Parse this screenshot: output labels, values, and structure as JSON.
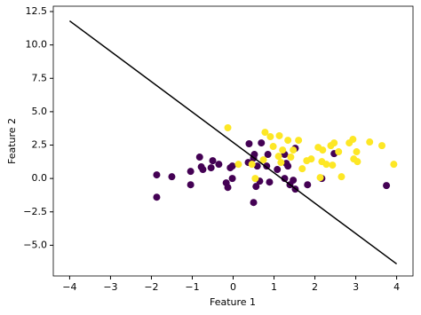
{
  "chart_data": {
    "type": "scatter",
    "xlabel": "Feature 1",
    "ylabel": "Feature 2",
    "xlim": [
      -4.4,
      4.4
    ],
    "ylim": [
      -7.3,
      12.9
    ],
    "xticks": [
      {
        "value": -4,
        "label": "−4"
      },
      {
        "value": -3,
        "label": "−3"
      },
      {
        "value": -2,
        "label": "−2"
      },
      {
        "value": -1,
        "label": "−1"
      },
      0,
      1,
      2,
      3,
      4
    ],
    "yticks": [
      {
        "value": -5,
        "label": "−5.0"
      },
      {
        "value": -2.5,
        "label": "−2.5"
      },
      {
        "value": 0,
        "label": "0.0"
      },
      2.5,
      {
        "value": 5,
        "label": "5.0"
      },
      7.5,
      {
        "value": 10,
        "label": "10.0"
      },
      12.5
    ],
    "groups": [
      {
        "color": "#440154",
        "x": [
          -1.87,
          -1.87,
          -1.5,
          -1.04,
          -1.04,
          -0.82,
          -0.78,
          -0.74,
          -0.54,
          -0.5,
          -0.35,
          -0.17,
          -0.13,
          -0.07,
          -0.02,
          -0.02,
          0.39,
          0.37,
          0.5,
          0.52,
          0.59,
          0.56,
          0.5,
          0.65,
          0.69,
          0.82,
          0.85,
          0.89,
          1.08,
          1.26,
          1.26,
          1.3,
          1.34,
          1.39,
          1.47,
          1.52,
          1.52,
          1.82,
          2.17,
          2.47,
          3.75
        ],
        "y": [
          -1.4,
          0.27,
          0.13,
          0.53,
          -0.47,
          1.6,
          0.87,
          0.67,
          0.8,
          1.33,
          1.06,
          -0.33,
          -0.67,
          0.8,
          0,
          0.93,
          2.6,
          1.2,
          1.53,
          1.8,
          0.93,
          -0.6,
          -1.8,
          -0.2,
          2.66,
          0.93,
          1.8,
          -0.27,
          0.67,
          1.8,
          0,
          1.13,
          0.93,
          -0.47,
          -0.13,
          -0.8,
          2.26,
          -0.47,
          0,
          1.86,
          -0.53
        ]
      },
      {
        "color": "#fde725",
        "x": [
          -0.13,
          0.13,
          0.46,
          0.54,
          0.74,
          0.78,
          0.91,
          1.13,
          0.98,
          1.11,
          1.17,
          1.21,
          1.34,
          1.41,
          1.47,
          1.6,
          1.69,
          1.8,
          1.91,
          2.08,
          2.19,
          2.13,
          2.17,
          2.28,
          2.39,
          2.43,
          2.47,
          2.65,
          2.58,
          2.84,
          2.93,
          2.95,
          3.04,
          3.02,
          3.34,
          3.64,
          3.93
        ],
        "y": [
          3.8,
          1.06,
          1.06,
          0,
          1.4,
          3.46,
          3.13,
          3.2,
          2.4,
          1.66,
          1.2,
          2.13,
          2.86,
          1.6,
          2.13,
          2.86,
          0.73,
          1.33,
          1.46,
          2.33,
          2.13,
          0.07,
          1.26,
          1.06,
          2.46,
          1.0,
          2.66,
          0.13,
          2.0,
          2.66,
          2.93,
          1.46,
          1.26,
          2.0,
          2.73,
          2.46,
          1.06
        ]
      }
    ],
    "line": {
      "color": "#000000",
      "x": [
        -4,
        4
      ],
      "y": [
        11.8,
        -6.4
      ]
    }
  }
}
